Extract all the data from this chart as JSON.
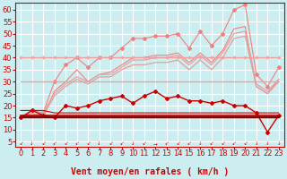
{
  "bg_color": "#cceef0",
  "grid_color": "#ffffff",
  "xlabel": "Vent moyen/en rafales ( km/h )",
  "xlabel_color": "#cc0000",
  "xlabel_fontsize": 7,
  "tick_color": "#cc0000",
  "tick_fontsize": 6,
  "yticks": [
    5,
    10,
    15,
    20,
    25,
    30,
    35,
    40,
    45,
    50,
    55,
    60
  ],
  "xticks": [
    0,
    1,
    2,
    3,
    4,
    5,
    6,
    7,
    8,
    9,
    10,
    11,
    12,
    13,
    14,
    15,
    16,
    17,
    18,
    19,
    20,
    21,
    22,
    23
  ],
  "ylim": [
    3,
    63
  ],
  "xlim": [
    -0.5,
    23.5
  ],
  "series": [
    {
      "name": "salmon_upper_with_marker",
      "color": "#f08080",
      "linewidth": 0.8,
      "marker": "D",
      "markersize": 2,
      "data_x": [
        0,
        1,
        2,
        3,
        4,
        5,
        6,
        7,
        8,
        9,
        10,
        11,
        12,
        13,
        14,
        15,
        16,
        17,
        18,
        19,
        20,
        21,
        22,
        23
      ],
      "data_y": [
        15,
        18,
        17,
        30,
        37,
        40,
        36,
        40,
        40,
        44,
        48,
        48,
        49,
        49,
        50,
        44,
        51,
        45,
        50,
        60,
        62,
        33,
        28,
        36
      ]
    },
    {
      "name": "salmon_lower_band",
      "color": "#f08080",
      "linewidth": 0.8,
      "marker": null,
      "markersize": 0,
      "data_x": [
        0,
        1,
        2,
        3,
        4,
        5,
        6,
        7,
        8,
        9,
        10,
        11,
        12,
        13,
        14,
        15,
        16,
        17,
        18,
        19,
        20,
        21,
        22,
        23
      ],
      "data_y": [
        15,
        17,
        15,
        26,
        30,
        35,
        30,
        33,
        34,
        37,
        40,
        40,
        41,
        41,
        42,
        38,
        42,
        38,
        43,
        52,
        53,
        28,
        25,
        31
      ]
    },
    {
      "name": "light_pink_flat_upper",
      "color": "#f0a0a0",
      "linewidth": 1.0,
      "marker": "+",
      "markersize": 3,
      "data_x": [
        0,
        1,
        2,
        3,
        4,
        5,
        6,
        7,
        8,
        9,
        10,
        11,
        12,
        13,
        14,
        15,
        16,
        17,
        18,
        19,
        20,
        21,
        22,
        23
      ],
      "data_y": [
        40,
        40,
        40,
        40,
        40,
        40,
        40,
        40,
        40,
        40,
        40,
        40,
        40,
        40,
        40,
        40,
        40,
        40,
        40,
        40,
        40,
        40,
        40,
        40
      ]
    },
    {
      "name": "light_pink_flat_lower",
      "color": "#f0a0a0",
      "linewidth": 1.0,
      "marker": null,
      "markersize": 0,
      "data_x": [
        0,
        1,
        2,
        3,
        4,
        5,
        6,
        7,
        8,
        9,
        10,
        11,
        12,
        13,
        14,
        15,
        16,
        17,
        18,
        19,
        20,
        21,
        22,
        23
      ],
      "data_y": [
        30,
        30,
        30,
        30,
        30,
        30,
        30,
        30,
        30,
        30,
        30,
        30,
        30,
        30,
        30,
        30,
        30,
        30,
        30,
        30,
        30,
        30,
        30,
        30
      ]
    },
    {
      "name": "light_pink_rising1",
      "color": "#e8a0a0",
      "linewidth": 0.9,
      "marker": null,
      "markersize": 0,
      "data_x": [
        0,
        1,
        2,
        3,
        4,
        5,
        6,
        7,
        8,
        9,
        10,
        11,
        12,
        13,
        14,
        15,
        16,
        17,
        18,
        19,
        20,
        21,
        22,
        23
      ],
      "data_y": [
        15,
        16,
        17,
        25,
        29,
        32,
        30,
        33,
        33,
        36,
        39,
        39,
        40,
        40,
        41,
        37,
        41,
        37,
        42,
        50,
        51,
        29,
        26,
        31
      ]
    },
    {
      "name": "light_pink_rising2",
      "color": "#e0a0a0",
      "linewidth": 0.9,
      "marker": null,
      "markersize": 0,
      "data_x": [
        0,
        1,
        2,
        3,
        4,
        5,
        6,
        7,
        8,
        9,
        10,
        11,
        12,
        13,
        14,
        15,
        16,
        17,
        18,
        19,
        20,
        21,
        22,
        23
      ],
      "data_y": [
        15,
        16,
        16,
        24,
        28,
        31,
        29,
        32,
        32,
        35,
        37,
        37,
        38,
        38,
        39,
        35,
        39,
        35,
        40,
        48,
        49,
        28,
        25,
        30
      ]
    },
    {
      "name": "red_wavy_main",
      "color": "#cc0000",
      "linewidth": 1.0,
      "marker": "D",
      "markersize": 2,
      "data_x": [
        0,
        1,
        2,
        3,
        4,
        5,
        6,
        7,
        8,
        9,
        10,
        11,
        12,
        13,
        14,
        15,
        16,
        17,
        18,
        19,
        20,
        21,
        22,
        23
      ],
      "data_y": [
        15,
        18,
        16,
        15,
        20,
        19,
        20,
        22,
        23,
        24,
        21,
        24,
        26,
        23,
        24,
        22,
        22,
        21,
        22,
        20,
        20,
        17,
        9,
        16
      ]
    },
    {
      "name": "red_flat1",
      "color": "#cc0000",
      "linewidth": 1.0,
      "marker": null,
      "markersize": 0,
      "data_x": [
        0,
        1,
        2,
        3,
        4,
        5,
        6,
        7,
        8,
        9,
        10,
        11,
        12,
        13,
        14,
        15,
        16,
        17,
        18,
        19,
        20,
        21,
        22,
        23
      ],
      "data_y": [
        15,
        15,
        15,
        15,
        15,
        15,
        15,
        15,
        15,
        15,
        15,
        15,
        15,
        15,
        15,
        15,
        15,
        15,
        15,
        15,
        15,
        15,
        15,
        15
      ]
    },
    {
      "name": "red_flat2",
      "color": "#cc0000",
      "linewidth": 0.8,
      "marker": null,
      "markersize": 0,
      "data_x": [
        0,
        1,
        2,
        3,
        4,
        5,
        6,
        7,
        8,
        9,
        10,
        11,
        12,
        13,
        14,
        15,
        16,
        17,
        18,
        19,
        20,
        21,
        22,
        23
      ],
      "data_y": [
        18,
        18,
        18,
        17,
        17,
        17,
        17,
        17,
        17,
        17,
        17,
        17,
        17,
        17,
        17,
        17,
        17,
        17,
        17,
        17,
        17,
        17,
        17,
        17
      ]
    },
    {
      "name": "dark_red_flat",
      "color": "#aa0000",
      "linewidth": 1.2,
      "marker": null,
      "markersize": 0,
      "data_x": [
        0,
        1,
        2,
        3,
        4,
        5,
        6,
        7,
        8,
        9,
        10,
        11,
        12,
        13,
        14,
        15,
        16,
        17,
        18,
        19,
        20,
        21,
        22,
        23
      ],
      "data_y": [
        16,
        16,
        16,
        16,
        16,
        16,
        16,
        16,
        16,
        16,
        16,
        16,
        16,
        16,
        16,
        16,
        16,
        16,
        16,
        16,
        16,
        16,
        16,
        16
      ]
    },
    {
      "name": "dark_red_flat2",
      "color": "#880000",
      "linewidth": 1.5,
      "marker": null,
      "markersize": 0,
      "data_x": [
        0,
        1,
        2,
        3,
        4,
        5,
        6,
        7,
        8,
        9,
        10,
        11,
        12,
        13,
        14,
        15,
        16,
        17,
        18,
        19,
        20,
        21,
        22,
        23
      ],
      "data_y": [
        15,
        15,
        15,
        15,
        15,
        15,
        15,
        15,
        15,
        15,
        15,
        15,
        15,
        15,
        15,
        15,
        15,
        15,
        15,
        15,
        15,
        15,
        15,
        15
      ]
    }
  ],
  "arrow_directions": [
    "sw",
    "s",
    "sw",
    "sw",
    "sw",
    "sw",
    "sw",
    "s",
    "sw",
    "sw",
    "s",
    "sw",
    "e",
    "sw",
    "sw",
    "sw",
    "s",
    "sw",
    "sw",
    "sw",
    "sw",
    "s",
    "s",
    "s"
  ]
}
